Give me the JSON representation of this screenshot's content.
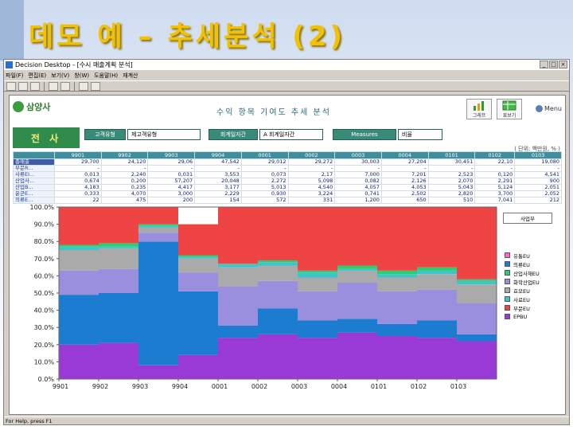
{
  "slide": {
    "title": "데모 예 – 추세분석 (2)"
  },
  "window": {
    "title": "Decision Desktop - [수시 매출계획 분석]",
    "controls": {
      "minimize": "_",
      "maximize": "□",
      "close": "×"
    }
  },
  "menu": [
    "파일(F)",
    "편집(E)",
    "보기(V)",
    "창(W)",
    "도움말(H)",
    "재계산"
  ],
  "content": {
    "logo_text": "삼양사",
    "heading": "수익 항목 기여도 추세 분석",
    "buttons": {
      "chart_label": "그래프",
      "table_label": "표보기",
      "menu_label": "Menu"
    },
    "corp_label": "전 사",
    "filters": [
      {
        "label": "고객유형",
        "value": "제고객유형"
      },
      {
        "label": "회계일자간",
        "value": "A 회계일자간"
      },
      {
        "label": "Measures",
        "value": "비율"
      }
    ],
    "unit_note": "( 단위: 백만원, % )",
    "table": {
      "headers": [
        "",
        "9901",
        "9902",
        "9903",
        "9904",
        "0001",
        "0002",
        "0003",
        "0004",
        "0101",
        "0102",
        "0103"
      ],
      "rows": [
        [
          "총매출",
          "29,700",
          "24,120",
          "29,06",
          "47,542",
          "29,012",
          "29,272",
          "30,003",
          "27,204",
          "30,451",
          "22,10",
          "19,080"
        ],
        [
          "부문R...",
          "-",
          "-",
          "-",
          "-",
          "-",
          "-",
          "-",
          "-",
          "-",
          "-",
          "-"
        ],
        [
          "사류EI...",
          "0,013",
          "2,240",
          "0,031",
          "3,553",
          "0,073",
          "2,17",
          "7,000",
          "7,201",
          "2,523",
          "0,120",
          "4,541"
        ],
        [
          "산업사...",
          "0,674",
          "0,200",
          "57,207",
          "20,048",
          "2,272",
          "5,098",
          "0,082",
          "2,126",
          "2,070",
          "2,291",
          "900"
        ],
        [
          "산업B...",
          "4,183",
          "0,235",
          "4,417",
          "3,177",
          "5,013",
          "4,540",
          "4,057",
          "4,053",
          "5,043",
          "5,124",
          "2,051"
        ],
        [
          "윤군E...",
          "0,333",
          "4,070",
          "3,000",
          "2,229",
          "0,930",
          "3,224",
          "0,741",
          "2,502",
          "2,820",
          "3,700",
          "2,052"
        ],
        [
          "의류E...",
          "22",
          "475",
          "200",
          "154",
          "572",
          "331",
          "1,200",
          "650",
          "510",
          "7,041",
          "212"
        ]
      ]
    }
  },
  "chart_data": {
    "type": "area",
    "stacked": true,
    "percent": true,
    "x": [
      "9901",
      "9902",
      "9903",
      "9904",
      "0001",
      "0002",
      "0003",
      "0004",
      "0101",
      "0102",
      "0103"
    ],
    "ylim": [
      0,
      100
    ],
    "yticks": [
      "0.0%",
      "10.0%",
      "20.0%",
      "30.0%",
      "40.0%",
      "50.0%",
      "60.0%",
      "70.0%",
      "80.0%",
      "90.0%",
      "100.0%"
    ],
    "legend_title": "사업부",
    "legend_position": "right",
    "series": [
      {
        "name": "EPBU",
        "color": "#9a3ad6",
        "values": [
          20,
          21,
          8,
          14,
          24,
          26,
          24,
          27,
          25,
          24,
          22
        ]
      },
      {
        "name": "의류EU",
        "color": "#1c7cd0",
        "values": [
          29,
          29,
          72,
          37,
          7,
          15,
          10,
          8,
          7,
          10,
          4
        ]
      },
      {
        "name": "화학산업EU",
        "color": "#9a8edf",
        "values": [
          14,
          14,
          5,
          11,
          23,
          16,
          17,
          21,
          19,
          18,
          18
        ]
      },
      {
        "name": "효모EU",
        "color": "#aaaaaa",
        "values": [
          12,
          12,
          3,
          8,
          11,
          9,
          8,
          7,
          8,
          9,
          11
        ]
      },
      {
        "name": "사료EU",
        "color": "#3ec6c6",
        "values": [
          2,
          1,
          1,
          1,
          2,
          2,
          3,
          1,
          2,
          2,
          2
        ]
      },
      {
        "name": "산업사재EU",
        "color": "#2ecc71",
        "values": [
          1,
          2,
          1,
          1,
          0,
          1,
          1,
          2,
          2,
          2,
          1
        ]
      },
      {
        "name": "유통EU",
        "color": "#ff66cc",
        "values": [
          0,
          0,
          0,
          0,
          0,
          0,
          0,
          0,
          0,
          0,
          0
        ]
      },
      {
        "name": "부문EU",
        "color": "#ef4444",
        "values": [
          22,
          21,
          10,
          18,
          33,
          31,
          37,
          34,
          37,
          35,
          42
        ]
      }
    ]
  },
  "status": {
    "text": "For Help, press F1"
  }
}
